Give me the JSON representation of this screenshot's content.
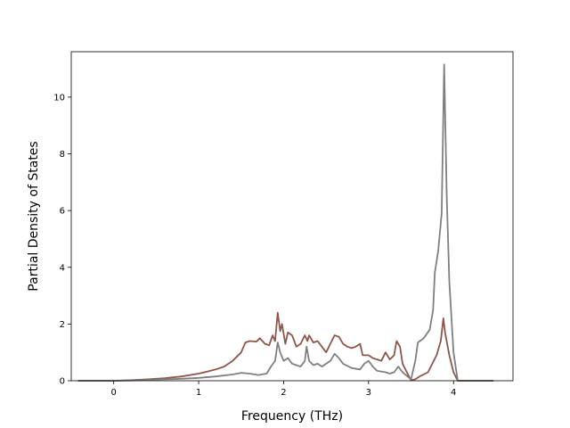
{
  "chart_data": {
    "type": "line",
    "title": "",
    "xlabel": "Frequency (THz)",
    "ylabel": "Partial Density of States",
    "xlim": [
      -0.5,
      4.7
    ],
    "ylim": [
      0,
      11.6
    ],
    "xticks": [
      0,
      1,
      2,
      3,
      4
    ],
    "yticks": [
      0,
      2,
      4,
      6,
      8,
      10
    ],
    "grid": false,
    "legend": "none",
    "series": [
      {
        "color": "#8c564b",
        "points": [
          [
            -0.42,
            0
          ],
          [
            0.0,
            0
          ],
          [
            0.2,
            0.02
          ],
          [
            0.4,
            0.05
          ],
          [
            0.6,
            0.09
          ],
          [
            0.8,
            0.15
          ],
          [
            1.0,
            0.25
          ],
          [
            1.1,
            0.32
          ],
          [
            1.2,
            0.4
          ],
          [
            1.3,
            0.5
          ],
          [
            1.4,
            0.7
          ],
          [
            1.5,
            1.0
          ],
          [
            1.55,
            1.35
          ],
          [
            1.6,
            1.4
          ],
          [
            1.68,
            1.38
          ],
          [
            1.72,
            1.5
          ],
          [
            1.78,
            1.3
          ],
          [
            1.83,
            1.25
          ],
          [
            1.87,
            1.6
          ],
          [
            1.9,
            1.4
          ],
          [
            1.93,
            2.4
          ],
          [
            1.96,
            1.75
          ],
          [
            1.98,
            2.0
          ],
          [
            2.02,
            1.3
          ],
          [
            2.05,
            1.7
          ],
          [
            2.1,
            1.6
          ],
          [
            2.15,
            1.2
          ],
          [
            2.2,
            1.3
          ],
          [
            2.25,
            1.6
          ],
          [
            2.28,
            1.4
          ],
          [
            2.3,
            1.6
          ],
          [
            2.35,
            1.35
          ],
          [
            2.4,
            1.4
          ],
          [
            2.45,
            1.2
          ],
          [
            2.5,
            1.0
          ],
          [
            2.55,
            1.3
          ],
          [
            2.6,
            1.6
          ],
          [
            2.65,
            1.55
          ],
          [
            2.7,
            1.3
          ],
          [
            2.75,
            1.2
          ],
          [
            2.8,
            1.15
          ],
          [
            2.85,
            1.2
          ],
          [
            2.9,
            1.3
          ],
          [
            2.93,
            0.9
          ],
          [
            3.0,
            0.9
          ],
          [
            3.05,
            0.8
          ],
          [
            3.1,
            0.75
          ],
          [
            3.15,
            0.7
          ],
          [
            3.2,
            1.0
          ],
          [
            3.25,
            0.75
          ],
          [
            3.3,
            0.9
          ],
          [
            3.33,
            1.4
          ],
          [
            3.37,
            1.2
          ],
          [
            3.4,
            0.6
          ],
          [
            3.45,
            0.3
          ],
          [
            3.5,
            0.02
          ],
          [
            3.55,
            0.05
          ],
          [
            3.6,
            0.15
          ],
          [
            3.7,
            0.3
          ],
          [
            3.75,
            0.6
          ],
          [
            3.8,
            0.9
          ],
          [
            3.85,
            1.4
          ],
          [
            3.88,
            2.2
          ],
          [
            3.9,
            1.7
          ],
          [
            3.95,
            0.9
          ],
          [
            4.0,
            0.3
          ],
          [
            4.05,
            0
          ],
          [
            4.47,
            0
          ]
        ]
      },
      {
        "color": "#7f7f7f",
        "points": [
          [
            -0.42,
            0
          ],
          [
            0.0,
            0
          ],
          [
            0.2,
            0.01
          ],
          [
            0.4,
            0.03
          ],
          [
            0.6,
            0.05
          ],
          [
            0.8,
            0.07
          ],
          [
            1.0,
            0.1
          ],
          [
            1.2,
            0.15
          ],
          [
            1.4,
            0.22
          ],
          [
            1.5,
            0.28
          ],
          [
            1.6,
            0.25
          ],
          [
            1.7,
            0.2
          ],
          [
            1.8,
            0.25
          ],
          [
            1.85,
            0.5
          ],
          [
            1.9,
            0.7
          ],
          [
            1.93,
            1.35
          ],
          [
            1.96,
            1.0
          ],
          [
            2.0,
            0.7
          ],
          [
            2.05,
            0.8
          ],
          [
            2.1,
            0.6
          ],
          [
            2.2,
            0.5
          ],
          [
            2.25,
            0.7
          ],
          [
            2.27,
            1.2
          ],
          [
            2.3,
            0.7
          ],
          [
            2.35,
            0.55
          ],
          [
            2.4,
            0.6
          ],
          [
            2.45,
            0.5
          ],
          [
            2.5,
            0.6
          ],
          [
            2.55,
            0.7
          ],
          [
            2.6,
            0.95
          ],
          [
            2.65,
            0.8
          ],
          [
            2.7,
            0.6
          ],
          [
            2.8,
            0.45
          ],
          [
            2.9,
            0.4
          ],
          [
            2.95,
            0.6
          ],
          [
            3.0,
            0.7
          ],
          [
            3.05,
            0.5
          ],
          [
            3.1,
            0.35
          ],
          [
            3.2,
            0.3
          ],
          [
            3.25,
            0.25
          ],
          [
            3.3,
            0.3
          ],
          [
            3.35,
            0.5
          ],
          [
            3.4,
            0.3
          ],
          [
            3.5,
            0.05
          ],
          [
            3.55,
            0.7
          ],
          [
            3.58,
            1.35
          ],
          [
            3.65,
            1.5
          ],
          [
            3.72,
            1.8
          ],
          [
            3.76,
            2.5
          ],
          [
            3.78,
            3.8
          ],
          [
            3.82,
            4.6
          ],
          [
            3.86,
            5.9
          ],
          [
            3.89,
            11.15
          ],
          [
            3.92,
            6.5
          ],
          [
            3.95,
            3.5
          ],
          [
            4.0,
            1.0
          ],
          [
            4.05,
            0
          ],
          [
            4.47,
            0
          ]
        ]
      }
    ]
  }
}
